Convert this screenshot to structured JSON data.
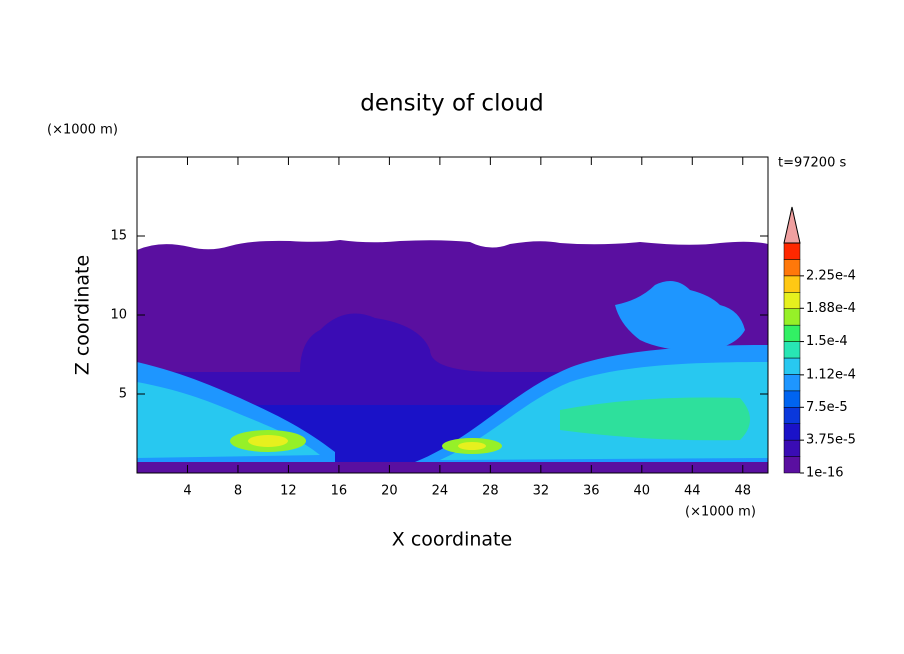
{
  "chart_data": {
    "type": "contour",
    "title": "density of cloud",
    "x_label": "X coordinate",
    "y_label": "Z coordinate",
    "x_unit": "(×1000 m)",
    "y_unit": "(×1000 m)",
    "time_label": "t=97200 s",
    "xlim": [
      0,
      50
    ],
    "xticks": [
      4,
      8,
      12,
      16,
      20,
      24,
      28,
      32,
      36,
      40,
      44,
      48
    ],
    "ylim": [
      0,
      20
    ],
    "yticks": [
      5,
      10,
      15
    ],
    "colorbar": {
      "clim": [
        0,
        0.0002625
      ],
      "colors": [
        "#5a0fa0",
        "#3a0cb4",
        "#1a12c8",
        "#0a38dc",
        "#0064f0",
        "#1e96ff",
        "#28c8f0",
        "#28e6b4",
        "#32f064",
        "#96f028",
        "#e6f01e",
        "#ffc814",
        "#ff780a",
        "#ff2800"
      ],
      "extend_color": "#f0a0a0",
      "ticks": [
        {
          "value": 1e-16,
          "label": "1e-16"
        },
        {
          "value": 3.75e-05,
          "label": "3.75e-5"
        },
        {
          "value": 7.5e-05,
          "label": "7.5e-5"
        },
        {
          "value": 0.000112,
          "label": "1.12e-4"
        },
        {
          "value": 0.00015,
          "label": "1.5e-4"
        },
        {
          "value": 0.000188,
          "label": "1.88e-4"
        },
        {
          "value": 0.000225,
          "label": "2.25e-4"
        }
      ]
    }
  }
}
